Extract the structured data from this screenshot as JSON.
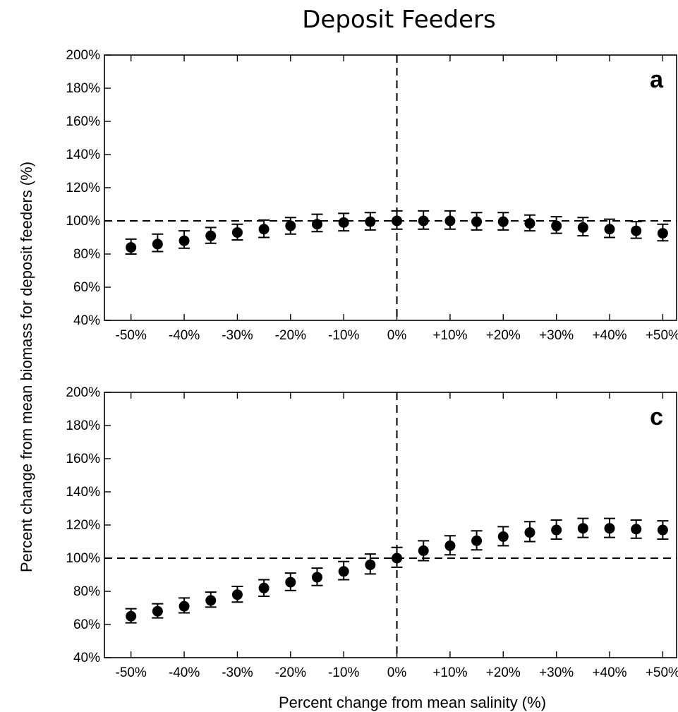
{
  "title": "Deposit Feeders",
  "ylabel": "Percent change from mean biomass for deposit feeders (%)",
  "xlabel": "Percent change from mean salinity (%)",
  "chart_data": [
    {
      "type": "scatter",
      "panel_label": "a",
      "x": [
        -50,
        -45,
        -40,
        -35,
        -30,
        -25,
        -20,
        -15,
        -10,
        -5,
        0,
        5,
        10,
        15,
        20,
        25,
        30,
        35,
        40,
        45,
        50
      ],
      "y": [
        84,
        86,
        88,
        91,
        93,
        95,
        97,
        98,
        99,
        99.5,
        100,
        100,
        100,
        99.5,
        99.5,
        98.5,
        97,
        96,
        95,
        94,
        92.5
      ],
      "err_low": [
        80,
        81.5,
        83.5,
        86.5,
        88.5,
        90,
        92,
        93.5,
        94,
        94.5,
        95,
        95,
        95,
        94.5,
        94.5,
        94,
        92.5,
        91,
        90,
        89.5,
        88
      ],
      "err_high": [
        89,
        92,
        94,
        96,
        98,
        100.5,
        102,
        104,
        104.5,
        105,
        106,
        106,
        106,
        105,
        105,
        103.5,
        102.5,
        102,
        101,
        99.5,
        98
      ],
      "xticks": [
        "-50%",
        "-40%",
        "-30%",
        "-20%",
        "-10%",
        "0%",
        "+10%",
        "+20%",
        "+30%",
        "+40%",
        "+50%"
      ],
      "xtick_values": [
        -50,
        -40,
        -30,
        -20,
        -10,
        0,
        10,
        20,
        30,
        40,
        50
      ],
      "yticks": [
        "40%",
        "60%",
        "80%",
        "100%",
        "120%",
        "140%",
        "160%",
        "180%",
        "200%"
      ],
      "ytick_values": [
        40,
        60,
        80,
        100,
        120,
        140,
        160,
        180,
        200
      ],
      "xlim": [
        -55,
        53
      ],
      "ylim": [
        40,
        200
      ],
      "reference_lines": {
        "y": 100,
        "x": 0
      }
    },
    {
      "type": "scatter",
      "panel_label": "c",
      "x": [
        -50,
        -45,
        -40,
        -35,
        -30,
        -25,
        -20,
        -15,
        -10,
        -5,
        0,
        5,
        10,
        15,
        20,
        25,
        30,
        35,
        40,
        45,
        50
      ],
      "y": [
        65,
        68,
        71,
        74.5,
        78,
        82,
        85.5,
        88.5,
        92,
        96,
        100,
        104.5,
        107.5,
        110.5,
        113,
        115.5,
        117,
        118,
        118,
        117.5,
        117
      ],
      "err_low": [
        61,
        64,
        67,
        70.5,
        73.5,
        77,
        80.5,
        83.5,
        87,
        90.5,
        94.5,
        98.5,
        102,
        105,
        107.5,
        110,
        111.5,
        112.5,
        112.5,
        112,
        111.5
      ],
      "err_high": [
        69.5,
        72.5,
        76,
        79.5,
        83,
        87,
        91,
        94,
        98,
        102.5,
        106.5,
        110.5,
        113.5,
        116.5,
        119,
        122,
        123,
        124,
        124,
        123,
        122.5
      ],
      "xticks": [
        "-50%",
        "-40%",
        "-30%",
        "-20%",
        "-10%",
        "0%",
        "+10%",
        "+20%",
        "+30%",
        "+40%",
        "+50%"
      ],
      "xtick_values": [
        -50,
        -40,
        -30,
        -20,
        -10,
        0,
        10,
        20,
        30,
        40,
        50
      ],
      "yticks": [
        "40%",
        "60%",
        "80%",
        "100%",
        "120%",
        "140%",
        "160%",
        "180%",
        "200%"
      ],
      "ytick_values": [
        40,
        60,
        80,
        100,
        120,
        140,
        160,
        180,
        200
      ],
      "xlim": [
        -55,
        53
      ],
      "ylim": [
        40,
        200
      ],
      "reference_lines": {
        "y": 100,
        "x": 0
      }
    }
  ]
}
